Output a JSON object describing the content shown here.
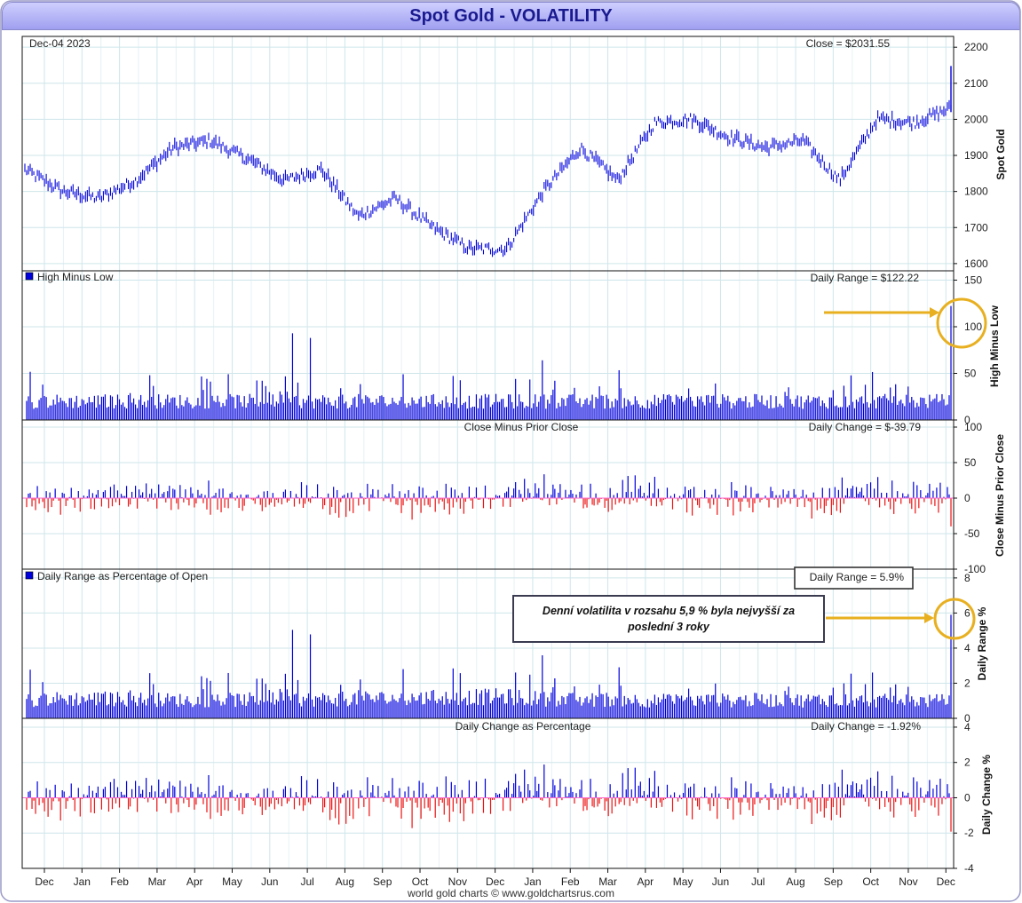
{
  "title": "Spot Gold - VOLATILITY",
  "footer": "world gold charts © www.goldchartsrus.com",
  "annotation_note": "Denní volatilita v rozsahu 5,9 % byla nejvyšší za poslední 3 roky",
  "colors": {
    "up": "#0000dd",
    "down": "#ee1111",
    "highlight": "#e8b020",
    "grid": "#cfe6ea"
  },
  "chart_data": [
    {
      "type": "line",
      "date_label": "Dec-04  2023",
      "value_label": "Close = $2031.55",
      "ylabel": "Spot Gold",
      "ylim": [
        1580,
        2230
      ],
      "yticks": [
        "2200",
        "2100",
        "2000",
        "1900",
        "1800",
        "1700",
        "1600"
      ],
      "x_months": [
        "Dec",
        "Jan",
        "Feb",
        "Mar",
        "Apr",
        "May",
        "Jun",
        "Jul",
        "Aug",
        "Sep",
        "Oct",
        "Nov",
        "Dec",
        "Jan",
        "Feb",
        "Mar",
        "Apr",
        "May",
        "Jun",
        "Jul",
        "Aug",
        "Sep",
        "Oct",
        "Nov",
        "Dec"
      ],
      "monthly_close": [
        1860,
        1800,
        1780,
        1830,
        1920,
        1940,
        1890,
        1830,
        1860,
        1730,
        1780,
        1700,
        1640,
        1640,
        1800,
        1920,
        1830,
        1990,
        2000,
        1950,
        1920,
        1940,
        1830,
        2000,
        1990,
        2030
      ],
      "last_value": 2031.55
    },
    {
      "type": "bar",
      "legend": "High Minus Low",
      "value_label": "Daily Range = $122.22",
      "ylabel": "High Minus Low",
      "ylim": [
        0,
        160
      ],
      "yticks": [
        "150",
        "100",
        "50",
        "0"
      ],
      "last_value": 122.22
    },
    {
      "type": "bar",
      "legend": "Close Minus Prior Close",
      "value_label": "Daily Change = $-39.79",
      "ylabel": "Close Minus Prior Close",
      "ylim": [
        -100,
        110
      ],
      "yticks": [
        "100",
        "50",
        "0",
        "-50",
        "-100"
      ],
      "last_value": -39.79
    },
    {
      "type": "bar",
      "legend": "Daily Range as Percentage of Open",
      "value_label": "Daily Range = 5.9%",
      "ylabel": "Daily Range %",
      "ylim": [
        0,
        8.5
      ],
      "yticks": [
        "8",
        "6",
        "4",
        "2",
        "0"
      ],
      "last_value": 5.9
    },
    {
      "type": "bar",
      "legend": "Daily Change as Percentage",
      "value_label": "Daily Change = -1.92%",
      "ylabel": "Daily Change %",
      "ylim": [
        -4,
        4.5
      ],
      "yticks": [
        "4",
        "2",
        "0",
        "-2",
        "-4"
      ],
      "last_value": -1.92
    }
  ]
}
